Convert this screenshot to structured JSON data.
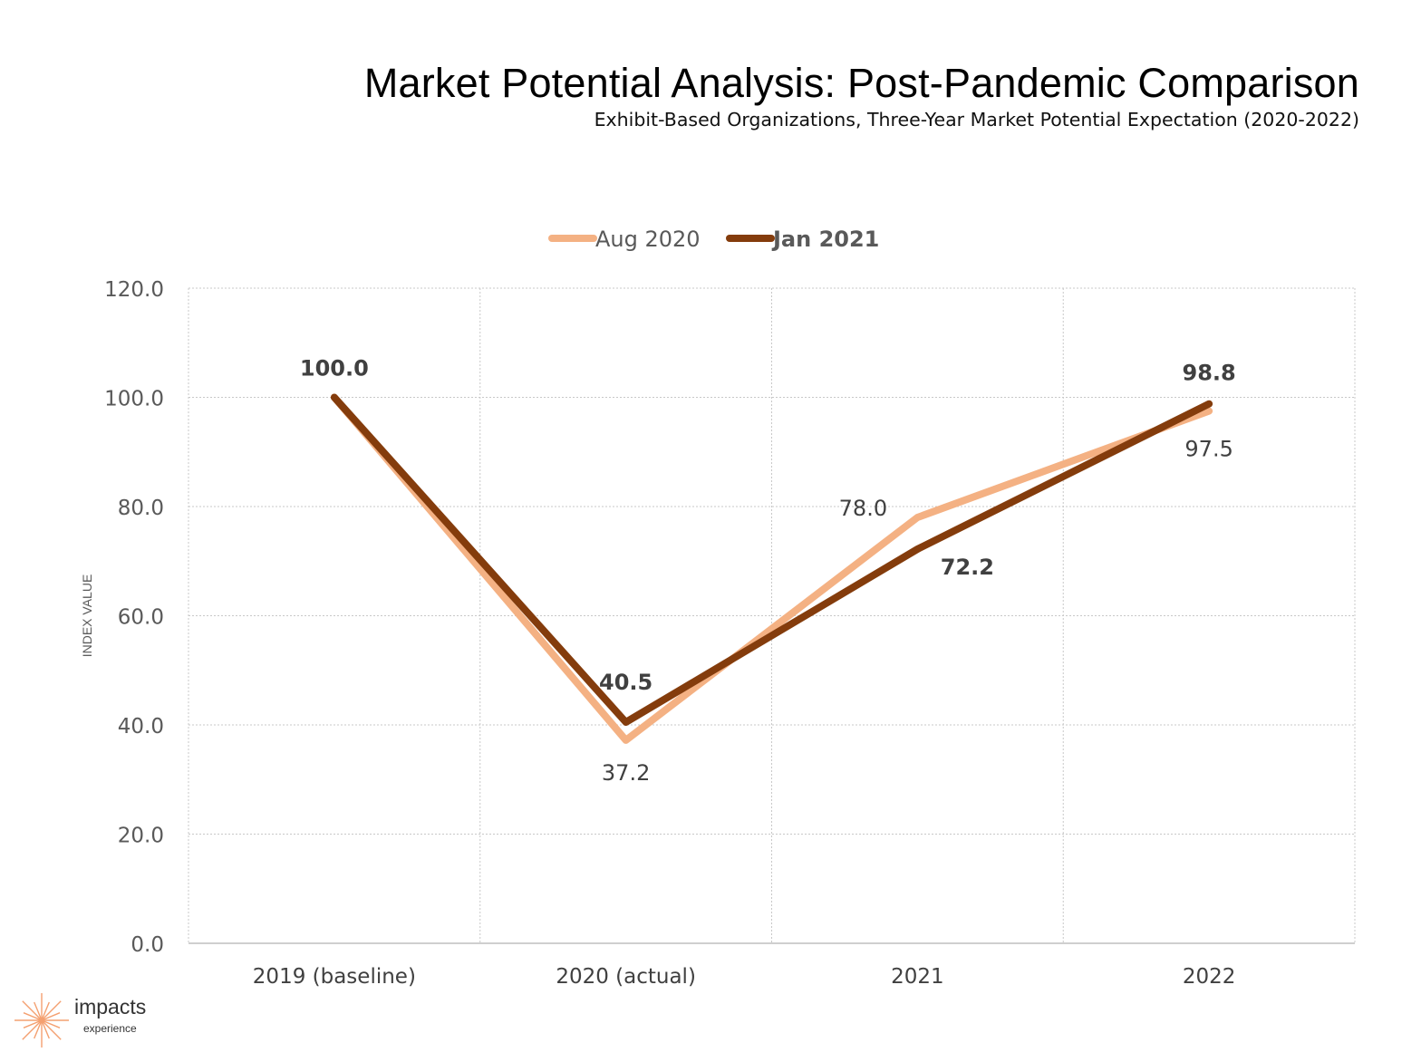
{
  "chart_data": {
    "type": "line",
    "title": "Market Potential Analysis: Post-Pandemic Comparison",
    "subtitle": "Exhibit-Based Organizations, Three-Year Market Potential Expectation (2020-2022)",
    "ylabel": "INDEX VALUE",
    "xlabel": "",
    "categories": [
      "2019 (baseline)",
      "2020 (actual)",
      "2021",
      "2022"
    ],
    "ylim": [
      0,
      120
    ],
    "yticks": [
      "0.0",
      "20.0",
      "40.0",
      "60.0",
      "80.0",
      "100.0",
      "120.0"
    ],
    "grid": true,
    "legend_position": "top",
    "series": [
      {
        "name": "Aug 2020",
        "values": [
          100.0,
          37.2,
          78.0,
          97.5
        ],
        "labels": [
          "",
          "37.2",
          "78.0",
          "97.5"
        ],
        "color": "#f4b183",
        "bold": false
      },
      {
        "name": "Jan 2021",
        "values": [
          100.0,
          40.5,
          72.2,
          98.8
        ],
        "labels": [
          "100.0",
          "40.5",
          "72.2",
          "98.8"
        ],
        "color": "#843c0c",
        "bold": true
      }
    ]
  },
  "logo": {
    "name": "impacts",
    "sub": "experience",
    "color": "#f4a070"
  }
}
